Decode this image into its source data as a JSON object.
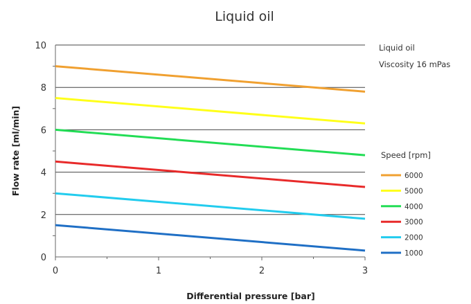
{
  "chart_data": {
    "type": "line",
    "title": "Liquid oil",
    "xlabel": "Differential pressure [bar]",
    "ylabel": "Flow rate [ml/min]",
    "xlim": [
      0,
      3
    ],
    "ylim": [
      0,
      10
    ],
    "x_ticks": [
      "0",
      "1",
      "2",
      "3"
    ],
    "y_ticks": [
      "0",
      "2",
      "4",
      "6",
      "8",
      "10"
    ],
    "grid": "horizontal",
    "annotations": [
      "Liquid oil",
      "Viscosity 16 mPas"
    ],
    "legend_title": "Speed [rpm]",
    "legend_position": "right",
    "x": [
      0,
      3
    ],
    "series": [
      {
        "name": "6000",
        "color": "#f0a030",
        "values": [
          9.0,
          7.8
        ]
      },
      {
        "name": "5000",
        "color": "#ffff1a",
        "values": [
          7.5,
          6.3
        ]
      },
      {
        "name": "4000",
        "color": "#22dd55",
        "values": [
          6.0,
          4.8
        ]
      },
      {
        "name": "3000",
        "color": "#e82a2a",
        "values": [
          4.5,
          3.3
        ]
      },
      {
        "name": "2000",
        "color": "#22ccee",
        "values": [
          3.0,
          1.8
        ]
      },
      {
        "name": "1000",
        "color": "#1f6fc5",
        "values": [
          1.5,
          0.3
        ]
      }
    ]
  }
}
